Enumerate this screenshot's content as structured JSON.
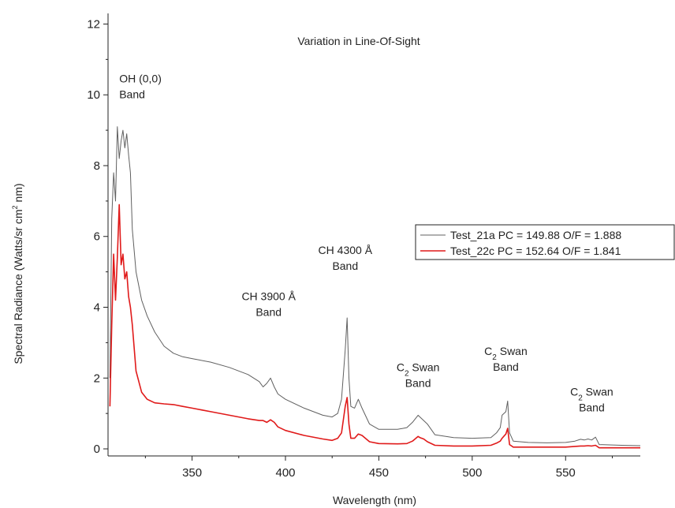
{
  "chart_data": {
    "type": "line",
    "title": "Variation in Line-Of-Sight",
    "xlabel": "Wavelength (nm)",
    "ylabel": "Spectral Radiance (Watts/sr cm",
    "ylabel_sup": "2",
    "ylabel_end": " nm)",
    "xlim": [
      305,
      590
    ],
    "ylim": [
      -0.2,
      12.3
    ],
    "xticks": [
      350,
      400,
      450,
      500,
      550
    ],
    "yticks": [
      0,
      2,
      4,
      6,
      8,
      10,
      12
    ],
    "grid": false,
    "legend_position": "right",
    "series": [
      {
        "name": "Test_21a PC = 149.88 O/F = 1.888",
        "color": "#606060",
        "x": [
          306,
          307,
          308,
          309,
          310,
          311,
          312,
          313,
          314,
          315,
          316,
          317,
          318,
          320,
          323,
          326,
          330,
          335,
          340,
          345,
          350,
          360,
          370,
          380,
          386,
          388,
          390,
          392,
          394,
          396,
          400,
          410,
          420,
          425,
          428,
          430,
          432,
          433,
          434,
          435,
          437,
          439,
          441,
          445,
          450,
          460,
          465,
          468,
          471,
          472,
          474,
          476,
          480,
          490,
          500,
          510,
          513,
          515,
          516,
          518,
          519,
          520,
          522,
          530,
          540,
          550,
          555,
          558,
          560,
          562,
          564,
          566,
          568,
          580,
          590
        ],
        "y": [
          2.0,
          6.5,
          7.8,
          7.0,
          9.1,
          8.2,
          8.7,
          9.0,
          8.5,
          8.9,
          8.3,
          7.8,
          6.2,
          5.0,
          4.2,
          3.75,
          3.3,
          2.9,
          2.7,
          2.6,
          2.55,
          2.45,
          2.3,
          2.1,
          1.9,
          1.75,
          1.85,
          2.0,
          1.75,
          1.55,
          1.4,
          1.15,
          0.95,
          0.9,
          1.0,
          1.4,
          2.8,
          3.7,
          2.0,
          1.2,
          1.15,
          1.4,
          1.15,
          0.7,
          0.55,
          0.55,
          0.6,
          0.75,
          0.95,
          0.9,
          0.8,
          0.7,
          0.4,
          0.32,
          0.3,
          0.32,
          0.45,
          0.6,
          0.95,
          1.05,
          1.35,
          0.45,
          0.22,
          0.18,
          0.17,
          0.18,
          0.22,
          0.27,
          0.25,
          0.28,
          0.25,
          0.33,
          0.12,
          0.1,
          0.09
        ]
      },
      {
        "name": "Test_22c PC = 152.64 O/F = 1.841",
        "color": "#e01a1a",
        "x": [
          306,
          307,
          308,
          309,
          310,
          311,
          312,
          313,
          314,
          315,
          316,
          317,
          318,
          320,
          323,
          326,
          330,
          335,
          340,
          345,
          350,
          360,
          370,
          380,
          386,
          388,
          390,
          392,
          394,
          396,
          400,
          410,
          420,
          425,
          428,
          430,
          432,
          433,
          434,
          435,
          437,
          439,
          441,
          445,
          450,
          460,
          465,
          468,
          471,
          472,
          474,
          476,
          480,
          490,
          500,
          510,
          513,
          515,
          516,
          518,
          519,
          520,
          522,
          530,
          540,
          550,
          555,
          558,
          560,
          562,
          564,
          566,
          568,
          580,
          590
        ],
        "y": [
          1.2,
          3.5,
          5.5,
          4.2,
          5.4,
          6.9,
          5.2,
          5.5,
          4.8,
          5.0,
          4.3,
          4.0,
          3.5,
          2.2,
          1.6,
          1.4,
          1.3,
          1.27,
          1.25,
          1.2,
          1.15,
          1.05,
          0.95,
          0.85,
          0.8,
          0.8,
          0.75,
          0.82,
          0.75,
          0.62,
          0.52,
          0.38,
          0.28,
          0.24,
          0.3,
          0.45,
          1.2,
          1.45,
          0.7,
          0.3,
          0.3,
          0.42,
          0.38,
          0.2,
          0.15,
          0.14,
          0.15,
          0.22,
          0.35,
          0.32,
          0.28,
          0.2,
          0.1,
          0.08,
          0.08,
          0.1,
          0.16,
          0.22,
          0.3,
          0.42,
          0.58,
          0.12,
          0.05,
          0.05,
          0.05,
          0.05,
          0.07,
          0.08,
          0.08,
          0.09,
          0.08,
          0.1,
          0.03,
          0.03,
          0.03
        ]
      }
    ],
    "annotations": [
      {
        "x": 311,
        "y": 10.35,
        "lines": [
          "OH (0,0)",
          "Band"
        ],
        "anchor": "start"
      },
      {
        "x": 391,
        "y": 4.2,
        "lines": [
          "CH 3900 Å",
          "Band"
        ],
        "anchor": "middle"
      },
      {
        "x": 432,
        "y": 5.5,
        "lines": [
          "CH 4300 Å",
          "Band"
        ],
        "anchor": "middle"
      },
      {
        "x": 471,
        "y": 2.2,
        "lines": [
          "C|2| Swan",
          "Band"
        ],
        "anchor": "middle"
      },
      {
        "x": 518,
        "y": 2.65,
        "lines": [
          "C|2| Swan",
          "Band"
        ],
        "anchor": "middle"
      },
      {
        "x": 564,
        "y": 1.5,
        "lines": [
          "C|2| Swan",
          "Band"
        ],
        "anchor": "middle"
      }
    ]
  }
}
